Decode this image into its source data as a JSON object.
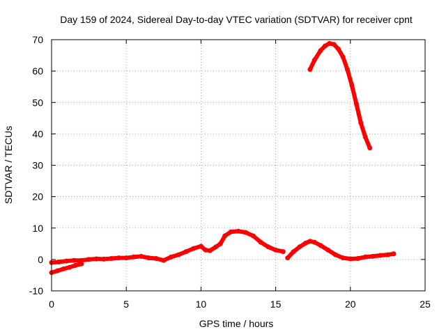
{
  "chart_data": {
    "type": "scatter",
    "title": "Day 159 of 2024, Sidereal Day-to-day VTEC variation (SDTVAR) for receiver cpnt",
    "xlabel": "GPS time / hours",
    "ylabel": "SDTVAR / TECUs",
    "xlim": [
      0,
      25
    ],
    "ylim": [
      -10,
      70
    ],
    "xticks": [
      "0",
      "5",
      "10",
      "15",
      "20",
      "25"
    ],
    "yticks": [
      "-10",
      "0",
      "10",
      "20",
      "30",
      "40",
      "50",
      "60",
      "70"
    ],
    "grid": true,
    "marker_color": "#ff0000",
    "series": [
      {
        "name": "segment-1",
        "x": [
          0.0,
          0.4,
          0.8,
          1.2,
          1.6,
          2.0
        ],
        "y": [
          -4.2,
          -3.6,
          -3.0,
          -2.5,
          -1.9,
          -1.4
        ]
      },
      {
        "name": "segment-2",
        "x": [
          0.0,
          0.5,
          1.0,
          1.5,
          2.0,
          2.5,
          3.0,
          3.5,
          4.0,
          4.5,
          5.0,
          5.5,
          6.0,
          6.5,
          7.0,
          7.5,
          8.0,
          8.5,
          9.0,
          9.5,
          10.0,
          10.3,
          10.6,
          11.0,
          11.3,
          11.6,
          12.0,
          12.5,
          13.0,
          13.5,
          14.0,
          14.5,
          15.0,
          15.5
        ],
        "y": [
          -1.0,
          -0.8,
          -0.5,
          -0.3,
          -0.3,
          0.0,
          0.2,
          0.1,
          0.3,
          0.5,
          0.5,
          0.8,
          1.0,
          0.5,
          0.3,
          -0.3,
          0.8,
          1.5,
          2.5,
          3.5,
          4.2,
          3.0,
          2.8,
          4.0,
          5.0,
          7.5,
          8.8,
          9.0,
          8.6,
          7.5,
          5.5,
          4.0,
          3.0,
          2.5
        ]
      },
      {
        "name": "segment-3",
        "x": [
          15.8,
          16.2,
          16.6,
          17.0,
          17.3,
          17.6,
          18.0,
          18.5,
          19.0,
          19.5,
          20.0,
          20.5,
          21.0,
          21.5,
          22.0,
          22.5,
          22.9
        ],
        "y": [
          0.5,
          2.5,
          4.0,
          5.2,
          5.8,
          5.5,
          4.5,
          3.0,
          1.5,
          0.5,
          0.2,
          0.3,
          0.8,
          1.0,
          1.3,
          1.5,
          1.8
        ]
      },
      {
        "name": "segment-4",
        "x": [
          17.3,
          17.6,
          18.0,
          18.3,
          18.6,
          18.9,
          19.2,
          19.5,
          19.8,
          20.1,
          20.4,
          20.7,
          21.0,
          21.3
        ],
        "y": [
          60.5,
          63.5,
          66.5,
          68.0,
          68.8,
          68.5,
          67.0,
          64.5,
          60.5,
          55.5,
          49.5,
          43.5,
          39.0,
          35.5
        ]
      }
    ]
  }
}
